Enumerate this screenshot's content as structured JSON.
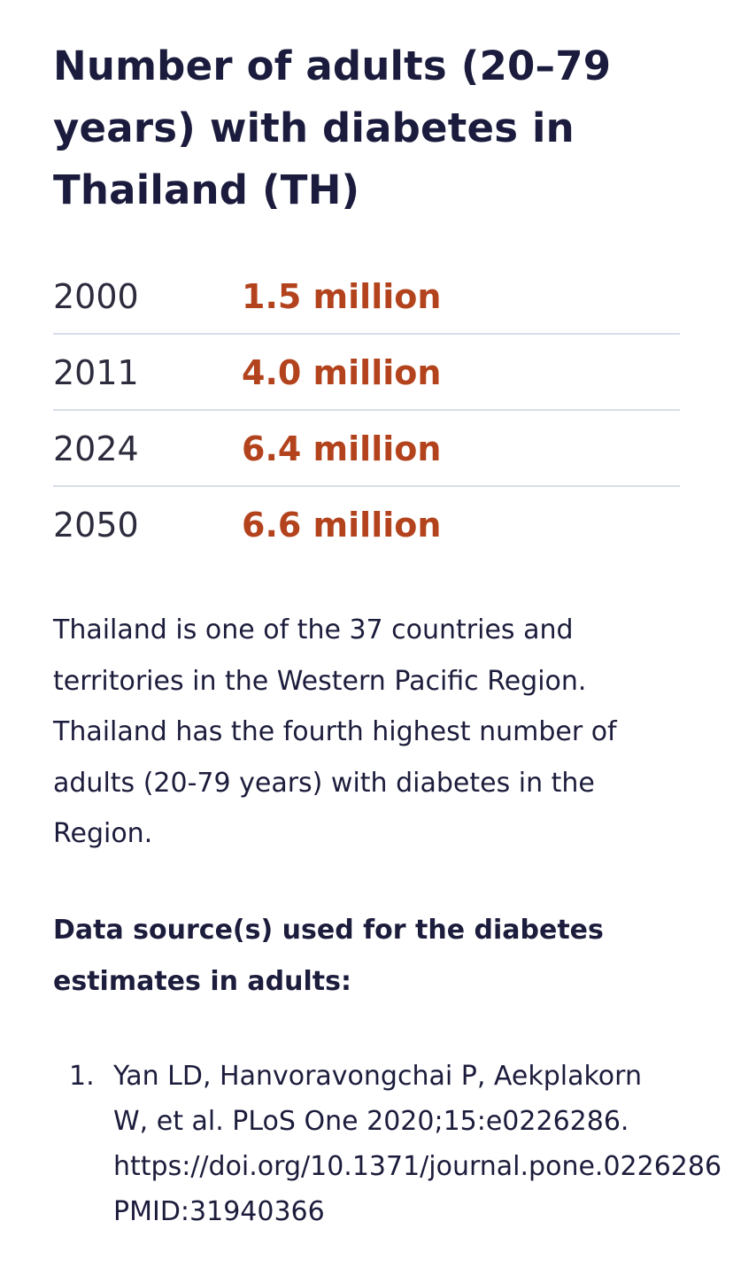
{
  "title": "Number of adults (20–79 years) with diabetes in Thailand (TH)",
  "stats": [
    {
      "year": "2000",
      "value": "1.5 million"
    },
    {
      "year": "2011",
      "value": "4.0 million"
    },
    {
      "year": "2024",
      "value": "6.4 million"
    },
    {
      "year": "2050",
      "value": "6.6 million"
    }
  ],
  "description": "Thailand is one of the 37 countries and territories in the Western Pacific Region. Thailand has the fourth highest number of adults (20-79 years) with diabetes in the Region.",
  "source_heading": "Data source(s) used for the diabetes estimates in adults:",
  "sources": [
    {
      "number": "1.",
      "lines": [
        "Yan LD, Hanvoravongchai P, Aekplakorn",
        "W, et al. PLoS One 2020;15:e0226286.",
        "https://doi.org/10.1371/journal.pone.0226286",
        "PMID:31940366"
      ]
    }
  ],
  "colors": {
    "title": "#1b1c3d",
    "value_accent": "#b3431d",
    "divider": "#d8dde9",
    "body_text": "#1c1c3c"
  }
}
